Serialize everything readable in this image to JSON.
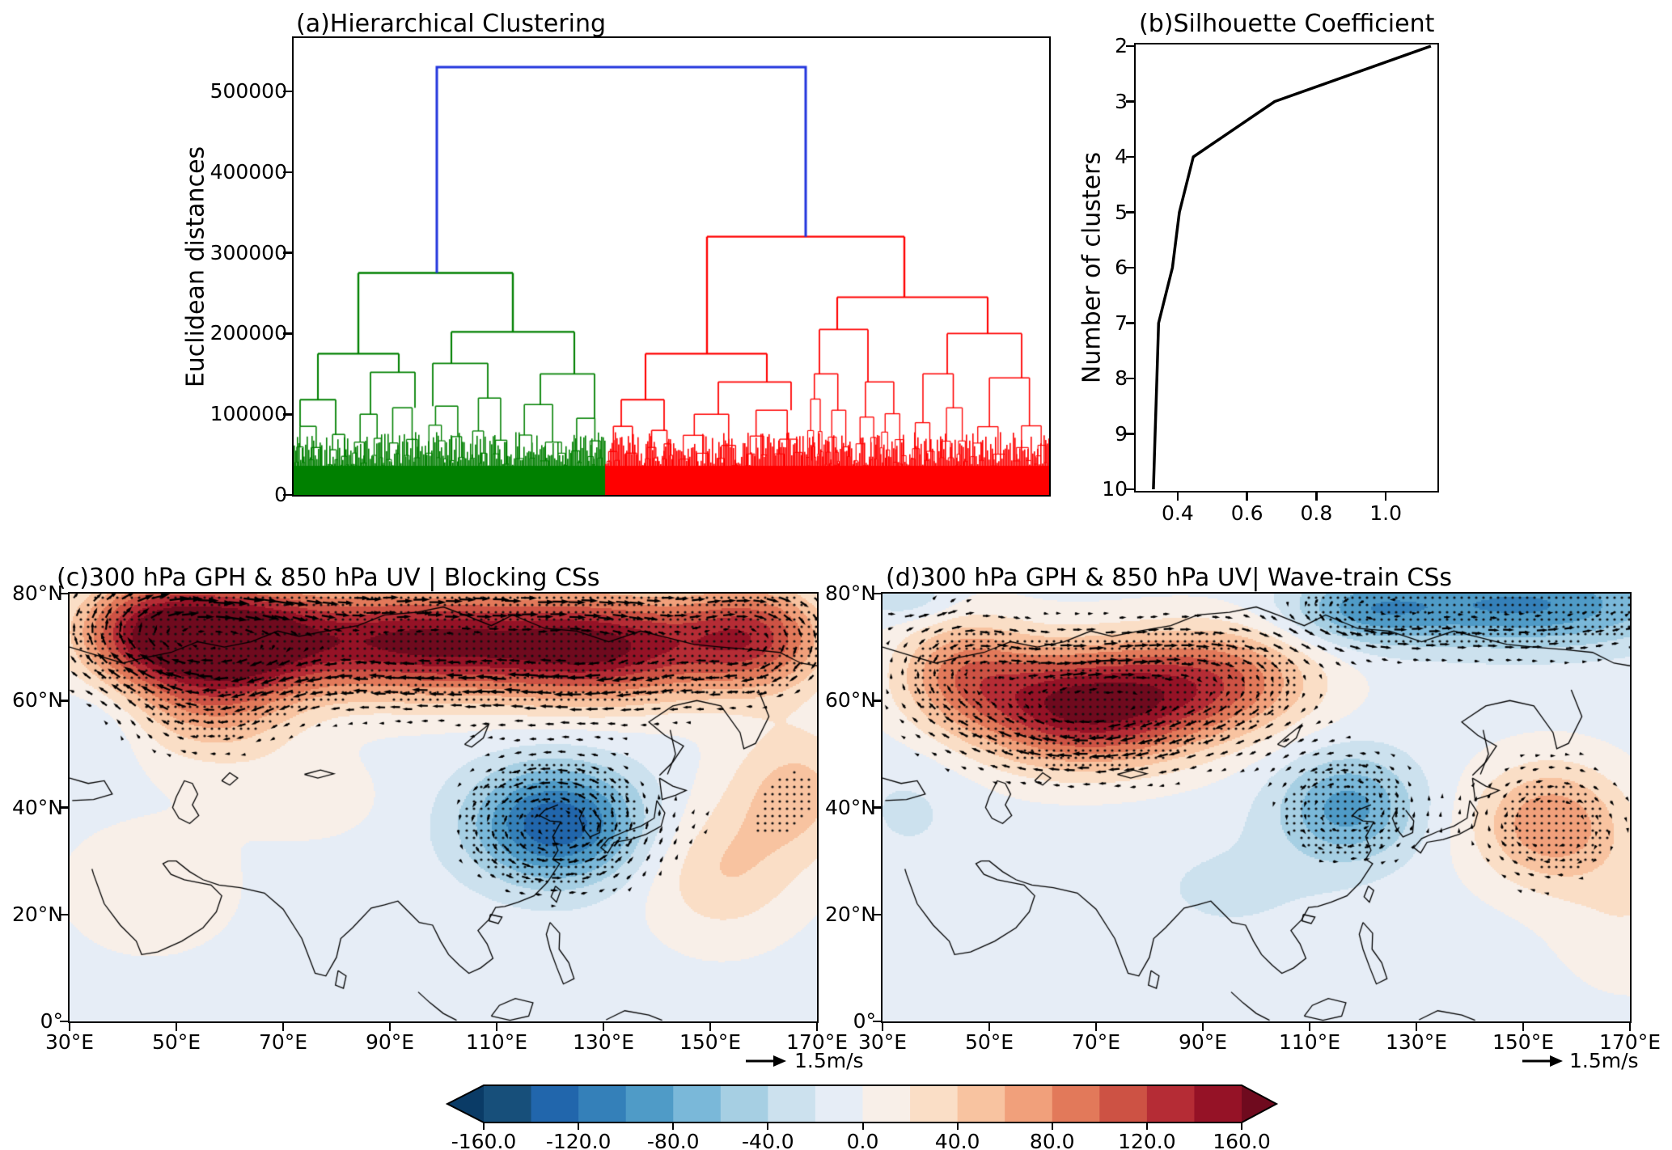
{
  "figure": {
    "background": "#ffffff"
  },
  "panel_a": {
    "title": "(a)Hierarchical Clustering",
    "ylabel": "Euclidean distances",
    "ytick_labels": [
      "0",
      "100000",
      "200000",
      "300000",
      "400000",
      "500000"
    ]
  },
  "panel_b": {
    "title": "(b)Silhouette Coefficient",
    "ylabel": "Number of clusters",
    "ytick_labels": [
      "2",
      "3",
      "4",
      "5",
      "6",
      "7",
      "8",
      "9",
      "10"
    ],
    "xtick_labels": [
      "0.4",
      "0.6",
      "0.8",
      "1.0"
    ]
  },
  "panel_c": {
    "title": "(c)300 hPa GPH & 850 hPa UV | Blocking CSs",
    "lat_tick_labels": [
      "80°N",
      "60°N",
      "40°N",
      "20°N",
      "0°"
    ],
    "lon_tick_labels": [
      "30°E",
      "50°E",
      "70°E",
      "90°E",
      "110°E",
      "130°E",
      "150°E",
      "170°E"
    ],
    "quiver_label": "1.5m/s"
  },
  "panel_d": {
    "title": "(d)300 hPa GPH & 850 hPa UV| Wave-train CSs",
    "lat_tick_labels": [
      "80°N",
      "60°N",
      "40°N",
      "20°N",
      "0°"
    ],
    "lon_tick_labels": [
      "30°E",
      "50°E",
      "70°E",
      "90°E",
      "110°E",
      "130°E",
      "150°E",
      "170°E"
    ],
    "quiver_label": "1.5m/s"
  },
  "colorbar": {
    "tick_labels": [
      "-160.0",
      "-120.0",
      "-80.0",
      "-40.0",
      "0.0",
      "40.0",
      "80.0",
      "120.0",
      "160.0"
    ],
    "levels": [
      -160,
      -140,
      -120,
      -100,
      -80,
      -60,
      -40,
      -20,
      0,
      20,
      40,
      60,
      80,
      100,
      120,
      140,
      160
    ],
    "under_color": "#0a3b66",
    "over_color": "#6f0a1e",
    "segment_colors": [
      "#174f7a",
      "#2166ac",
      "#3480b9",
      "#4f9bc7",
      "#7ab8d9",
      "#a6cfe3",
      "#cce1ee",
      "#e6edf6",
      "#f8efe8",
      "#fadec6",
      "#f8c3a0",
      "#f1a07b",
      "#e2795a",
      "#cd5244",
      "#b52c35",
      "#951226"
    ],
    "dot_color": "#111111"
  },
  "chart_data": [
    {
      "id": "dendrogram",
      "type": "dendrogram",
      "title": "(a)Hierarchical Clustering",
      "ylabel": "Euclidean distances",
      "ylim": [
        0,
        566000
      ],
      "yticks": [
        0,
        100000,
        200000,
        300000,
        400000,
        500000
      ],
      "root_height": 530000,
      "root_color": "#2335dd",
      "clusters": [
        {
          "name": "cluster-left",
          "color": "#008000",
          "merge_height": 275000,
          "child_heights": [
            175000,
            202000
          ],
          "leaf_span_fraction": [
            0.0,
            0.412
          ]
        },
        {
          "name": "cluster-right",
          "color": "#ff0000",
          "merge_height": 320000,
          "child_heights": [
            175000,
            245000
          ],
          "leaf_span_fraction": [
            0.412,
            1.0
          ]
        }
      ],
      "leaf_base_height": 42000
    },
    {
      "id": "silhouette",
      "type": "line",
      "title": "(b)Silhouette Coefficient",
      "ylabel": "Number of clusters",
      "clusters": [
        2,
        3,
        4,
        5,
        6,
        7,
        8,
        9,
        10
      ],
      "coefficients": [
        1.13,
        0.68,
        0.445,
        0.405,
        0.385,
        0.345,
        0.34,
        0.335,
        0.33
      ],
      "xlim": [
        0.279,
        1.149
      ],
      "xticks": [
        0.4,
        0.6,
        0.8,
        1.0
      ],
      "y_axis_inverted": true,
      "line_color": "#000000"
    },
    {
      "id": "map_blocking",
      "type": "contour_map",
      "title": "(c)300 hPa GPH & 850 hPa UV | Blocking CSs",
      "lon_range": [
        30,
        170
      ],
      "lat_range": [
        0,
        80
      ],
      "shading": "300 hPa geopotential height anomaly",
      "vectors": "850 hPa wind anomaly",
      "reference_vector": "1.5m/s",
      "background_value": -8,
      "stipple_threshold": 45,
      "anomaly_centers": [
        {
          "lon": 45,
          "lat": 73,
          "amp": 130,
          "sx": 10,
          "sy": 7
        },
        {
          "lon": 62,
          "lat": 72,
          "amp": 150,
          "sx": 12,
          "sy": 7
        },
        {
          "lon": 95,
          "lat": 71,
          "amp": 165,
          "sx": 18,
          "sy": 7
        },
        {
          "lon": 130,
          "lat": 70,
          "amp": 155,
          "sx": 15,
          "sy": 7
        },
        {
          "lon": 158,
          "lat": 72,
          "amp": 120,
          "sx": 10,
          "sy": 7
        },
        {
          "lon": 57,
          "lat": 60,
          "amp": 70,
          "sx": 11,
          "sy": 8
        },
        {
          "lon": 121,
          "lat": 37,
          "amp": -130,
          "sx": 11,
          "sy": 7.5
        },
        {
          "lon": 152,
          "lat": 28,
          "amp": 45,
          "sx": 10,
          "sy": 9
        },
        {
          "lon": 166,
          "lat": 43,
          "amp": 55,
          "sx": 9,
          "sy": 9
        },
        {
          "lon": 45,
          "lat": 25,
          "amp": 22,
          "sx": 12,
          "sy": 9
        },
        {
          "lon": 75,
          "lat": 42,
          "amp": 18,
          "sx": 10,
          "sy": 6
        },
        {
          "lon": 35,
          "lat": 55,
          "amp": -18,
          "sx": 6,
          "sy": 6
        }
      ]
    },
    {
      "id": "map_wavetrain",
      "type": "contour_map",
      "title": "(d)300 hPa GPH & 850 hPa UV| Wave-train CSs",
      "lon_range": [
        30,
        170
      ],
      "lat_range": [
        0,
        80
      ],
      "shading": "300 hPa geopotential height anomaly",
      "vectors": "850 hPa wind anomaly",
      "reference_vector": "1.5m/s",
      "background_value": -8,
      "stipple_threshold": 45,
      "anomaly_centers": [
        {
          "lon": 68,
          "lat": 59,
          "amp": 175,
          "sx": 15,
          "sy": 7.5
        },
        {
          "lon": 93,
          "lat": 64,
          "amp": 95,
          "sx": 13,
          "sy": 7
        },
        {
          "lon": 45,
          "lat": 66,
          "amp": 75,
          "sx": 9,
          "sy": 7
        },
        {
          "lon": 35,
          "lat": 79,
          "amp": -30,
          "sx": 6,
          "sy": 3
        },
        {
          "lon": 150,
          "lat": 78,
          "amp": -95,
          "sx": 20,
          "sy": 5.5
        },
        {
          "lon": 120,
          "lat": 77,
          "amp": -60,
          "sx": 10,
          "sy": 4.5
        },
        {
          "lon": 117,
          "lat": 40,
          "amp": -80,
          "sx": 9,
          "sy": 7
        },
        {
          "lon": 155,
          "lat": 37,
          "amp": 85,
          "sx": 10,
          "sy": 8
        },
        {
          "lon": 170,
          "lat": 20,
          "amp": 25,
          "sx": 10,
          "sy": 10
        },
        {
          "lon": 95,
          "lat": 25,
          "amp": -15,
          "sx": 14,
          "sy": 8
        },
        {
          "lon": 35,
          "lat": 40,
          "amp": -15,
          "sx": 8,
          "sy": 8
        }
      ]
    }
  ]
}
